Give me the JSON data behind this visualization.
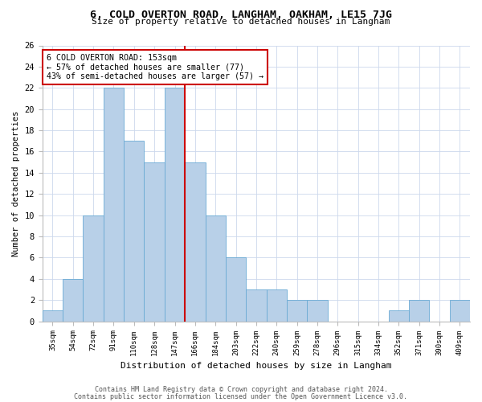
{
  "title": "6, COLD OVERTON ROAD, LANGHAM, OAKHAM, LE15 7JG",
  "subtitle": "Size of property relative to detached houses in Langham",
  "xlabel": "Distribution of detached houses by size in Langham",
  "ylabel": "Number of detached properties",
  "bar_labels": [
    "35sqm",
    "54sqm",
    "72sqm",
    "91sqm",
    "110sqm",
    "128sqm",
    "147sqm",
    "166sqm",
    "184sqm",
    "203sqm",
    "222sqm",
    "240sqm",
    "259sqm",
    "278sqm",
    "296sqm",
    "315sqm",
    "334sqm",
    "352sqm",
    "371sqm",
    "390sqm",
    "409sqm"
  ],
  "bar_heights": [
    1,
    4,
    10,
    22,
    17,
    15,
    22,
    15,
    10,
    6,
    3,
    3,
    2,
    2,
    0,
    0,
    0,
    1,
    2,
    0,
    2
  ],
  "bar_color": "#b8d0e8",
  "bar_edge_color": "#6aaad4",
  "vline_color": "#cc0000",
  "annotation_line1": "6 COLD OVERTON ROAD: 153sqm",
  "annotation_line2": "← 57% of detached houses are smaller (77)",
  "annotation_line3": "43% of semi-detached houses are larger (57) →",
  "annotation_box_color": "#cc0000",
  "ylim": [
    0,
    26
  ],
  "yticks": [
    0,
    2,
    4,
    6,
    8,
    10,
    12,
    14,
    16,
    18,
    20,
    22,
    24,
    26
  ],
  "footer1": "Contains HM Land Registry data © Crown copyright and database right 2024.",
  "footer2": "Contains public sector information licensed under the Open Government Licence v3.0.",
  "bg_color": "#ffffff",
  "grid_color": "#ccd8ec"
}
